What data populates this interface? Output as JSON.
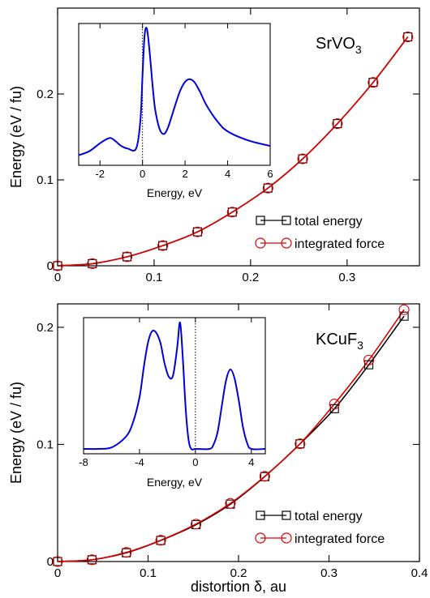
{
  "chart_data": [
    {
      "type": "line",
      "material": "SrVO",
      "material_sub": "3",
      "ylabel": "Energy (eV / fu)",
      "xlabel": "",
      "xlim": [
        0,
        0.375
      ],
      "ylim": [
        0,
        0.3
      ],
      "xticks": [
        0,
        0.1,
        0.2,
        0.3
      ],
      "xtick_labels": [
        "0",
        "0.1",
        "0.2",
        "0.3"
      ],
      "yticks": [
        0,
        0.1,
        0.2
      ],
      "ytick_labels": [
        "0",
        "0.1",
        "0.2"
      ],
      "legend_position": "bottom-right",
      "series": [
        {
          "name": "total energy",
          "color": "#000000",
          "marker": "square",
          "x": [
            0,
            0.036,
            0.072,
            0.109,
            0.145,
            0.181,
            0.218,
            0.254,
            0.29,
            0.327,
            0.363
          ],
          "values": [
            0,
            0.0025,
            0.0105,
            0.0235,
            0.0395,
            0.0625,
            0.0905,
            0.1245,
            0.1655,
            0.2135,
            0.2665
          ]
        },
        {
          "name": "integrated force",
          "color": "#dd0000",
          "marker": "circle",
          "x": [
            0,
            0.036,
            0.072,
            0.109,
            0.145,
            0.181,
            0.218,
            0.254,
            0.29,
            0.327,
            0.363
          ],
          "values": [
            0,
            0.0025,
            0.0105,
            0.0235,
            0.0395,
            0.0625,
            0.0905,
            0.1245,
            0.1655,
            0.2135,
            0.2665
          ]
        }
      ],
      "inset": {
        "type": "line",
        "xlabel": "Energy, eV",
        "xlim": [
          -3,
          6
        ],
        "xticks": [
          -2,
          0,
          2,
          4,
          6
        ],
        "xtick_labels": [
          "-2",
          "0",
          "2",
          "4",
          "6"
        ],
        "fermi_level": 0,
        "color": "#0000dd",
        "x": [
          -3,
          -2.5,
          -2,
          -1.7,
          -1.5,
          -1.3,
          -1.0,
          -0.7,
          -0.3,
          -0.1,
          0.0,
          0.1,
          0.2,
          0.3,
          0.4,
          0.5,
          0.6,
          0.8,
          1.0,
          1.2,
          1.5,
          1.8,
          2.1,
          2.4,
          2.7,
          3.0,
          3.5,
          4.0,
          5.0,
          6.0
        ],
        "values": [
          0.04,
          0.07,
          0.13,
          0.16,
          0.17,
          0.15,
          0.11,
          0.09,
          0.09,
          0.3,
          0.65,
          0.95,
          1.0,
          0.88,
          0.7,
          0.52,
          0.38,
          0.24,
          0.2,
          0.25,
          0.4,
          0.54,
          0.61,
          0.6,
          0.52,
          0.42,
          0.3,
          0.22,
          0.15,
          0.11
        ]
      }
    },
    {
      "type": "line",
      "material": "KCuF",
      "material_sub": "3",
      "ylabel": "Energy (eV / fu)",
      "xlabel": "distortion δ, au",
      "xlim": [
        0,
        0.4
      ],
      "ylim": [
        0,
        0.22
      ],
      "xticks": [
        0,
        0.1,
        0.2,
        0.3,
        0.4
      ],
      "xtick_labels": [
        "0",
        "0.1",
        "0.2",
        "0.3",
        "0.4"
      ],
      "yticks": [
        0,
        0.1,
        0.2
      ],
      "ytick_labels": [
        "0",
        "0.1",
        "0.2"
      ],
      "legend_position": "bottom-right",
      "series": [
        {
          "name": "total energy",
          "color": "#000000",
          "marker": "square",
          "x": [
            0,
            0.038,
            0.076,
            0.114,
            0.153,
            0.191,
            0.229,
            0.268,
            0.306,
            0.344,
            0.383
          ],
          "values": [
            0,
            0.0015,
            0.0075,
            0.018,
            0.0315,
            0.049,
            0.0725,
            0.1005,
            0.1305,
            0.168,
            0.2095
          ]
        },
        {
          "name": "integrated force",
          "color": "#dd0000",
          "marker": "circle",
          "x": [
            0,
            0.038,
            0.076,
            0.114,
            0.153,
            0.191,
            0.229,
            0.268,
            0.306,
            0.344,
            0.383
          ],
          "values": [
            0,
            0.0015,
            0.0078,
            0.0182,
            0.032,
            0.0497,
            0.0728,
            0.1005,
            0.1345,
            0.172,
            0.215
          ]
        }
      ],
      "inset": {
        "type": "line",
        "xlabel": "Energy, eV",
        "xlim": [
          -8,
          5
        ],
        "xticks": [
          -8,
          -4,
          0,
          4
        ],
        "xtick_labels": [
          "-8",
          "-4",
          "0",
          "4"
        ],
        "fermi_level": 0,
        "color": "#0000dd",
        "x": [
          -8,
          -7,
          -6,
          -5,
          -4.5,
          -4,
          -3.7,
          -3.4,
          -3.1,
          -2.8,
          -2.5,
          -2.2,
          -1.9,
          -1.6,
          -1.3,
          -1.1,
          -0.9,
          -0.7,
          -0.5,
          -0.3,
          0,
          1.0,
          1.3,
          1.6,
          1.9,
          2.2,
          2.5,
          2.8,
          3.1,
          3.4,
          3.7,
          4.0,
          5.0
        ],
        "values": [
          0.0,
          0.0,
          0.01,
          0.08,
          0.17,
          0.35,
          0.55,
          0.72,
          0.8,
          0.79,
          0.72,
          0.58,
          0.49,
          0.5,
          0.69,
          0.86,
          0.62,
          0.28,
          0.07,
          0.0,
          0.0,
          0.0,
          0.03,
          0.12,
          0.3,
          0.47,
          0.54,
          0.48,
          0.33,
          0.15,
          0.04,
          0.0,
          0.0
        ]
      }
    }
  ]
}
